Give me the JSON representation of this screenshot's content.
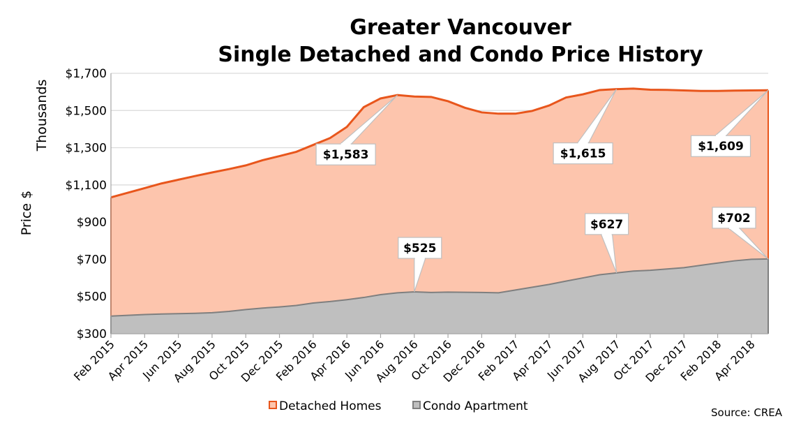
{
  "chart_data": {
    "type": "area",
    "title": [
      "Greater Vancouver",
      "Single Detached and Condo Price History"
    ],
    "ylabel": "Price $",
    "yunit_label": "Thousands",
    "ylim": [
      300,
      1700
    ],
    "yticks": [
      300,
      500,
      700,
      900,
      1100,
      1300,
      1500,
      1700
    ],
    "ytick_labels": [
      "$300",
      "$500",
      "$700",
      "$900",
      "$1,100",
      "$1,300",
      "$1,500",
      "$1,700"
    ],
    "x": [
      "Feb 2015",
      "Mar 2015",
      "Apr 2015",
      "May 2015",
      "Jun 2015",
      "Jul 2015",
      "Aug 2015",
      "Sep 2015",
      "Oct 2015",
      "Nov 2015",
      "Dec 2015",
      "Jan 2016",
      "Feb 2016",
      "Mar 2016",
      "Apr 2016",
      "May 2016",
      "Jun 2016",
      "Jul 2016",
      "Aug 2016",
      "Sep 2016",
      "Oct 2016",
      "Nov 2016",
      "Dec 2016",
      "Jan 2017",
      "Feb 2017",
      "Mar 2017",
      "Apr 2017",
      "May 2017",
      "Jun 2017",
      "Jul 2017",
      "Aug 2017",
      "Sep 2017",
      "Oct 2017",
      "Nov 2017",
      "Dec 2017",
      "Jan 2018",
      "Feb 2018",
      "Mar 2018",
      "Apr 2018",
      "May 2018"
    ],
    "xtick_labels": [
      "Feb 2015",
      "Apr 2015",
      "Jun 2015",
      "Aug 2015",
      "Oct 2015",
      "Dec 2015",
      "Feb 2016",
      "Apr 2016",
      "Jun 2016",
      "Aug 2016",
      "Oct 2016",
      "Dec 2016",
      "Feb 2017",
      "Apr 2017",
      "Jun 2017",
      "Aug 2017",
      "Oct 2017",
      "Dec 2017",
      "Feb 2018",
      "Apr 2018"
    ],
    "series": [
      {
        "name": "Detached Homes",
        "color": "#e8561c",
        "fill": "#fdc5ad",
        "values": [
          1033,
          1058,
          1083,
          1108,
          1128,
          1148,
          1167,
          1185,
          1205,
          1233,
          1255,
          1278,
          1315,
          1352,
          1412,
          1518,
          1565,
          1583,
          1575,
          1573,
          1550,
          1515,
          1490,
          1483,
          1483,
          1498,
          1527,
          1570,
          1587,
          1610,
          1615,
          1618,
          1612,
          1611,
          1608,
          1605,
          1605,
          1607,
          1608,
          1609
        ]
      },
      {
        "name": "Condo Apartment",
        "color": "#7f7f7f",
        "fill": "#bfbfbf",
        "values": [
          395,
          399,
          403,
          406,
          408,
          410,
          413,
          420,
          430,
          438,
          444,
          452,
          465,
          473,
          483,
          495,
          510,
          520,
          525,
          522,
          524,
          523,
          522,
          520,
          535,
          550,
          565,
          583,
          600,
          617,
          627,
          637,
          641,
          648,
          655,
          668,
          680,
          692,
          700,
          702
        ]
      }
    ],
    "annotations": [
      {
        "label": "$1,583",
        "series": "Detached Homes",
        "x": "Jul 2016",
        "value": 1583
      },
      {
        "label": "$1,615",
        "series": "Detached Homes",
        "x": "Aug 2017",
        "value": 1615
      },
      {
        "label": "$1,609",
        "series": "Detached Homes",
        "x": "May 2018",
        "value": 1609
      },
      {
        "label": "$525",
        "series": "Condo Apartment",
        "x": "Aug 2016",
        "value": 525
      },
      {
        "label": "$627",
        "series": "Condo Apartment",
        "x": "Aug 2017",
        "value": 627
      },
      {
        "label": "$702",
        "series": "Condo Apartment",
        "x": "May 2018",
        "value": 702
      }
    ],
    "grid": true,
    "legend": "bottom",
    "source": "Source: CREA"
  }
}
